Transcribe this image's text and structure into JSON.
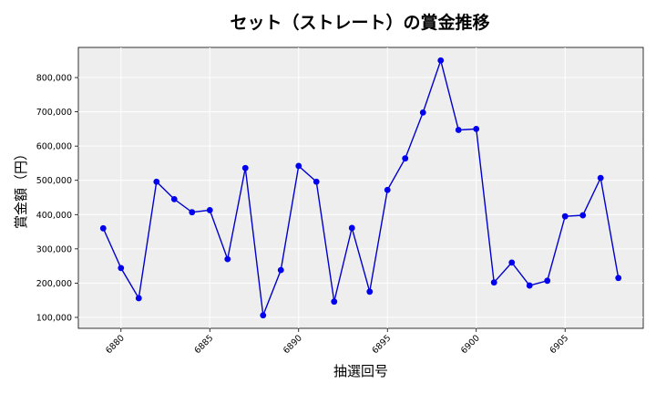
{
  "chart_data": {
    "type": "line",
    "title": "セット（ストレート）の賞金推移",
    "xlabel": "抽選回号",
    "ylabel": "賞金額（円）",
    "xlim": [
      6877.6,
      6909.4
    ],
    "ylim": [
      68000,
      888000
    ],
    "x_ticks": [
      6880,
      6885,
      6890,
      6895,
      6900,
      6905
    ],
    "y_ticks": [
      100000,
      200000,
      300000,
      400000,
      500000,
      600000,
      700000,
      800000
    ],
    "y_tick_labels": [
      "100,000",
      "200,000",
      "300,000",
      "400,000",
      "500,000",
      "600,000",
      "700,000",
      "800,000"
    ],
    "grid": true,
    "colors": {
      "line": "#0000cc",
      "marker": "#0000ee",
      "plot_bg": "#eeeeee",
      "grid": "#ffffff"
    },
    "series": [
      {
        "x": [
          6879,
          6880,
          6881,
          6882,
          6883,
          6884,
          6885,
          6886,
          6887,
          6888,
          6889,
          6890,
          6891,
          6892,
          6893,
          6894,
          6895,
          6896,
          6897,
          6898,
          6899,
          6900,
          6901,
          6902,
          6903,
          6904,
          6905,
          6906,
          6907,
          6908
        ],
        "values": [
          360000,
          244000,
          156000,
          496000,
          445000,
          407000,
          413000,
          270000,
          536000,
          106000,
          238000,
          542000,
          496000,
          146000,
          361000,
          175000,
          472000,
          564000,
          698000,
          850000,
          647000,
          650000,
          202000,
          260000,
          193000,
          207000,
          395000,
          398000,
          507000,
          215000
        ]
      }
    ]
  }
}
